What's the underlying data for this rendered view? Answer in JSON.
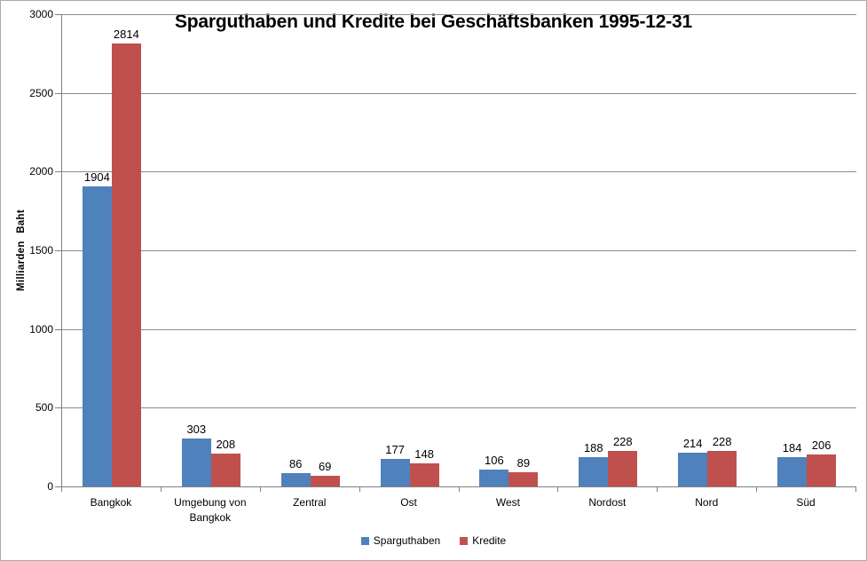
{
  "chart_data": {
    "type": "bar",
    "title": "Sparguthaben und Kredite bei Geschäftsbanken 1995-12-31",
    "ylabel": "Milliarden Baht",
    "xlabel": "",
    "categories": [
      "Bangkok",
      "Umgebung von Bangkok",
      "Zentral",
      "Ost",
      "West",
      "Nordost",
      "Nord",
      "Süd"
    ],
    "series": [
      {
        "name": "Sparguthaben",
        "color": "#4F81BD",
        "values": [
          1904,
          303,
          86,
          177,
          106,
          188,
          214,
          184
        ]
      },
      {
        "name": "Kredite",
        "color": "#C0504D",
        "values": [
          2814,
          208,
          69,
          148,
          89,
          228,
          228,
          206
        ]
      }
    ],
    "ylim": [
      0,
      3000
    ],
    "ytick_step": 500,
    "yticks": [
      0,
      500,
      1000,
      1500,
      2000,
      2500,
      3000
    ],
    "grid": true,
    "data_labels": true,
    "legend_position": "bottom",
    "gridline_color": "#8C8C8C",
    "axis_color": "#808080",
    "text_color": "#000000",
    "background_color": "#FFFFFF"
  }
}
